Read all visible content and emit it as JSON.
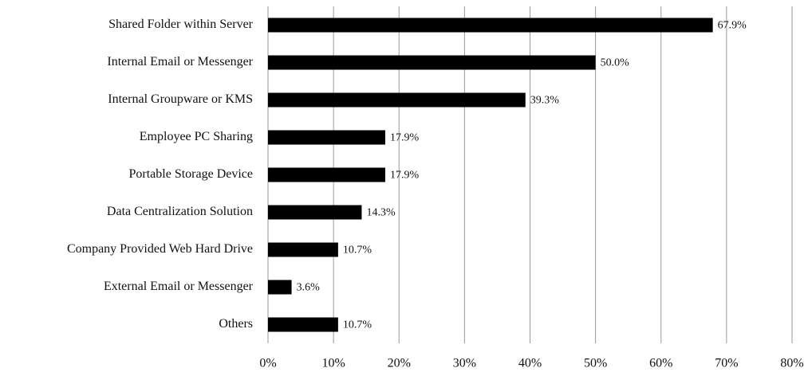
{
  "chart_data": {
    "type": "bar",
    "orientation": "horizontal",
    "categories": [
      "Shared Folder within Server",
      "Internal Email or Messenger",
      "Internal Groupware or KMS",
      "Employee PC Sharing",
      "Portable Storage Device",
      "Data Centralization Solution",
      "Company Provided Web Hard Drive",
      "External Email or Messenger",
      "Others"
    ],
    "values": [
      67.9,
      50.0,
      39.3,
      17.9,
      17.9,
      14.3,
      10.7,
      3.6,
      10.7
    ],
    "value_labels": [
      "67.9%",
      "50.0%",
      "39.3%",
      "17.9%",
      "17.9%",
      "14.3%",
      "10.7%",
      "3.6%",
      "10.7%"
    ],
    "color": "#000000",
    "xlim": [
      0,
      80
    ],
    "xticks": [
      {
        "value": 0,
        "label": "0%"
      },
      {
        "value": 10,
        "label": "10%"
      },
      {
        "value": 20,
        "label": "20%"
      },
      {
        "value": 30,
        "label": "30%"
      },
      {
        "value": 40,
        "label": "40%"
      },
      {
        "value": 50,
        "label": "50%"
      },
      {
        "value": 60,
        "label": "60%"
      },
      {
        "value": 70,
        "label": "70%"
      },
      {
        "value": 80,
        "label": "80%"
      }
    ],
    "grid": true
  }
}
